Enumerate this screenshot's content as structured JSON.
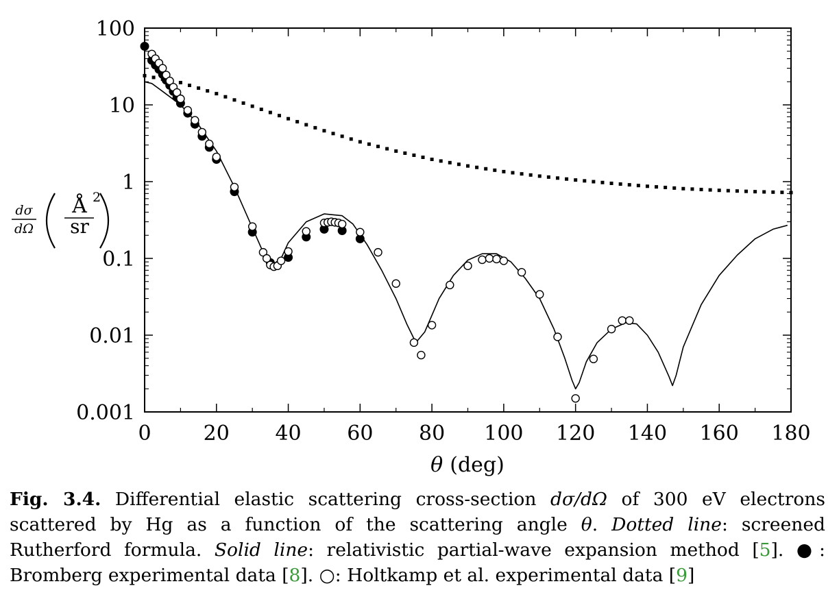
{
  "chart_data": {
    "type": "scatter",
    "xlabel_symbol": "θ",
    "xlabel_unit": "(deg)",
    "ylabel_num": "dσ",
    "ylabel_den": "dΩ",
    "ylabel_unit_top": "Å",
    "ylabel_unit_exp": "2",
    "ylabel_unit_bottom": "sr",
    "xlim": [
      0,
      180
    ],
    "ylim": [
      0.001,
      100
    ],
    "yscale": "log",
    "grid": false,
    "x_ticks": [
      0,
      20,
      40,
      60,
      80,
      100,
      120,
      140,
      160,
      180
    ],
    "x_tick_labels": [
      "0",
      "20",
      "40",
      "60",
      "80",
      "100",
      "120",
      "140",
      "160",
      "180"
    ],
    "y_ticks": [
      0.001,
      0.01,
      0.1,
      1,
      10,
      100
    ],
    "y_tick_labels": [
      "0.001",
      "0.01",
      "0.1",
      "1",
      "10",
      "100"
    ],
    "series": [
      {
        "style": "dotted-line",
        "x": [
          0,
          10,
          20,
          30,
          40,
          50,
          60,
          70,
          80,
          90,
          100,
          110,
          120,
          130,
          140,
          150,
          160,
          170,
          180
        ],
        "y": [
          24,
          19.5,
          14,
          9.6,
          6.6,
          4.6,
          3.3,
          2.5,
          1.95,
          1.6,
          1.35,
          1.18,
          1.05,
          0.95,
          0.87,
          0.81,
          0.77,
          0.74,
          0.72
        ]
      },
      {
        "style": "solid-line",
        "x": [
          0,
          2,
          5,
          10,
          15,
          20,
          25,
          30,
          33,
          35,
          36,
          38,
          40,
          45,
          50,
          55,
          58,
          62,
          66,
          70,
          73,
          75,
          76,
          78,
          82,
          86,
          90,
          94,
          98,
          102,
          106,
          110,
          114,
          117,
          119,
          120,
          121,
          123,
          126,
          130,
          134,
          137,
          140,
          143,
          146,
          147,
          148,
          150,
          155,
          160,
          165,
          170,
          175,
          179
        ],
        "y": [
          20,
          19,
          15,
          10,
          5.5,
          2.5,
          0.85,
          0.25,
          0.12,
          0.09,
          0.085,
          0.1,
          0.16,
          0.3,
          0.38,
          0.36,
          0.28,
          0.15,
          0.07,
          0.03,
          0.014,
          0.009,
          0.0085,
          0.011,
          0.03,
          0.06,
          0.095,
          0.115,
          0.115,
          0.09,
          0.055,
          0.03,
          0.012,
          0.005,
          0.0026,
          0.002,
          0.0024,
          0.0045,
          0.008,
          0.012,
          0.0145,
          0.014,
          0.01,
          0.006,
          0.0029,
          0.0022,
          0.003,
          0.007,
          0.025,
          0.06,
          0.11,
          0.18,
          0.24,
          0.27
        ]
      },
      {
        "style": "filled-circles",
        "x": [
          0,
          2,
          3,
          4,
          5,
          6,
          7,
          8,
          9,
          10,
          12,
          14,
          16,
          18,
          20,
          25,
          30,
          35,
          40,
          45,
          50,
          55,
          60
        ],
        "y": [
          58,
          38,
          33,
          29,
          25,
          21,
          18,
          15,
          12.5,
          10.5,
          7.8,
          5.6,
          3.9,
          2.8,
          1.95,
          0.74,
          0.22,
          0.088,
          0.103,
          0.19,
          0.24,
          0.23,
          0.18
        ]
      },
      {
        "style": "open-circles",
        "x": [
          2,
          3,
          4,
          5,
          6,
          7,
          8,
          9,
          10,
          12,
          14,
          16,
          18,
          20,
          25,
          30,
          33,
          34,
          35,
          36,
          37,
          38,
          40,
          45,
          50,
          51,
          52,
          53,
          54,
          55,
          60,
          65,
          70,
          75,
          77,
          80,
          85,
          90,
          94,
          96,
          98,
          100,
          105,
          110,
          115,
          120,
          125,
          130,
          133,
          135
        ],
        "y": [
          46,
          40,
          35,
          30,
          24.5,
          20.5,
          17,
          14.5,
          12,
          8.5,
          6.3,
          4.4,
          3.1,
          2.1,
          0.85,
          0.26,
          0.12,
          0.1,
          0.082,
          0.078,
          0.08,
          0.093,
          0.123,
          0.225,
          0.29,
          0.295,
          0.3,
          0.295,
          0.29,
          0.28,
          0.22,
          0.12,
          0.047,
          0.008,
          0.0055,
          0.0135,
          0.045,
          0.08,
          0.096,
          0.1,
          0.098,
          0.093,
          0.066,
          0.034,
          0.0095,
          0.0015,
          0.0049,
          0.012,
          0.0155,
          0.0155
        ]
      }
    ]
  },
  "caption": {
    "label": "Fig. 3.4.",
    "t1": " Differential elastic scattering cross-section ",
    "sym1": "dσ/dΩ",
    "t2": " of 300 eV electrons scattered by Hg as a function of the scattering angle ",
    "sym2": "θ",
    "t3": ". ",
    "dotted_label": "Dotted line",
    "t4": ": screened Rutherford formula. ",
    "solid_label": "Solid line",
    "t5": ": relativistic partial-wave expansion method [",
    "ref1": "5",
    "t6": "]. ●: Bromberg experimental data [",
    "ref2": "8",
    "t7": "]. ○: Holtkamp et al. experimental data [",
    "ref3": "9",
    "t8": "]"
  }
}
